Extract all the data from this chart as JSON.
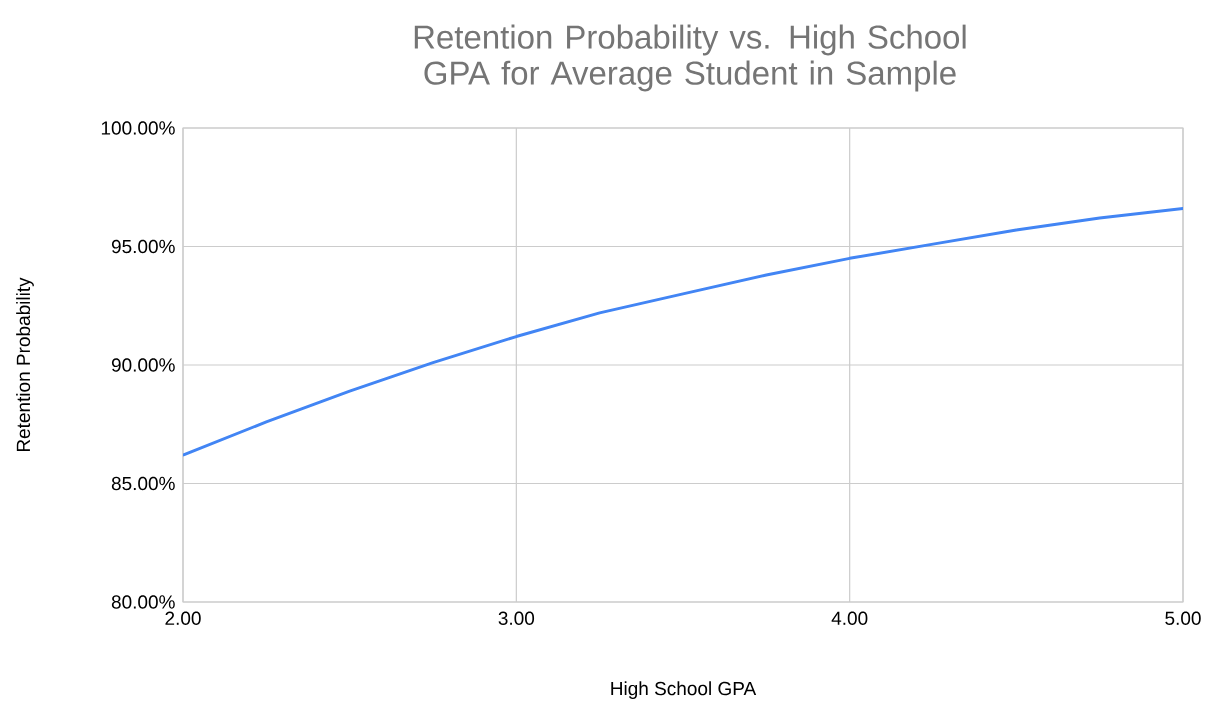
{
  "chart_data": {
    "type": "line",
    "title": "Retention Probability vs. High School GPA for Average Student in Sample",
    "xlabel": "High School GPA",
    "ylabel": "Retention Probability",
    "x": [
      2.0,
      2.25,
      2.5,
      2.75,
      3.0,
      3.25,
      3.5,
      3.75,
      4.0,
      4.25,
      4.5,
      4.75,
      5.0
    ],
    "series": [
      {
        "color": "#4285f4",
        "values": [
          86.2,
          87.6,
          88.9,
          90.1,
          91.2,
          92.2,
          93.0,
          93.8,
          94.5,
          95.1,
          95.7,
          96.2,
          96.6
        ]
      }
    ],
    "xlim": [
      2,
      5
    ],
    "ylim": [
      80,
      100
    ],
    "xticks": [
      {
        "value": 2,
        "label": "2.00"
      },
      {
        "value": 3,
        "label": "3.00"
      },
      {
        "value": 4,
        "label": "4.00"
      },
      {
        "value": 5,
        "label": "5.00"
      }
    ],
    "yticks": [
      {
        "value": 80,
        "label": "80.00%"
      },
      {
        "value": 85,
        "label": "85.00%"
      },
      {
        "value": 90,
        "label": "90.00%"
      },
      {
        "value": 95,
        "label": "95.00%"
      },
      {
        "value": 100,
        "label": "100.00%"
      }
    ],
    "grid": true,
    "marker": "none",
    "line_style": "solid"
  }
}
